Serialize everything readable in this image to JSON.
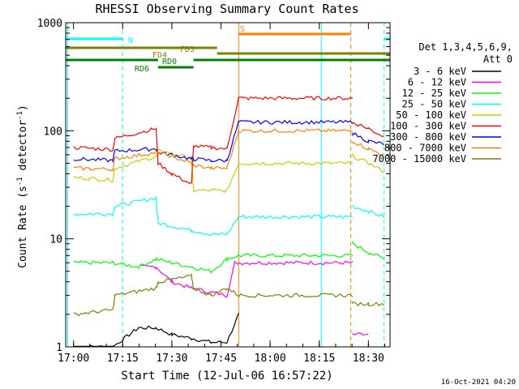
{
  "chart_data": {
    "type": "line",
    "title": "RHESSI Observing Summary Count Rates",
    "xlabel": "Start Time (12-Jul-06 16:57:22)",
    "ylabel_main": "Count Rate (s",
    "ylabel_sup1": "-1",
    "ylabel_mid": " detector",
    "ylabel_sup2": "-1",
    "ylabel_end": ")",
    "ylog": true,
    "ylim": [
      1,
      1000
    ],
    "xlim_minutes": [
      16.96,
      18.61
    ],
    "x_ticks": [
      {
        "t": 17.0,
        "label": "17:00"
      },
      {
        "t": 17.25,
        "label": "17:15"
      },
      {
        "t": 17.5,
        "label": "17:30"
      },
      {
        "t": 17.75,
        "label": "17:45"
      },
      {
        "t": 18.0,
        "label": "18:00"
      },
      {
        "t": 18.25,
        "label": "18:15"
      },
      {
        "t": 18.5,
        "label": "18:30"
      }
    ],
    "y_ticks": [
      {
        "v": 1,
        "label": "1"
      },
      {
        "v": 10,
        "label": "10"
      },
      {
        "v": 100,
        "label": "100"
      },
      {
        "v": 1000,
        "label": "1000"
      }
    ],
    "legend_header": [
      "Det 1,3,4,5,6,9,",
      "Att 0"
    ],
    "series": [
      {
        "name": "3 - 6 keV",
        "color": "#000000",
        "values": [
          [
            17.0,
            1
          ],
          [
            17.2,
            1
          ],
          [
            17.33,
            1.5
          ],
          [
            17.42,
            1.5
          ],
          [
            17.5,
            1.3
          ],
          [
            17.6,
            1.2
          ],
          [
            17.7,
            1.1
          ],
          [
            17.78,
            1.1
          ],
          [
            17.84,
            2
          ]
        ]
      },
      {
        "name": "6 - 12 keV",
        "color": "#ff00ff",
        "values": [
          [
            17.34,
            5.5
          ],
          [
            17.42,
            5.5
          ],
          [
            17.5,
            4
          ],
          [
            17.6,
            3.5
          ],
          [
            17.7,
            3.2
          ],
          [
            17.78,
            3
          ],
          [
            17.82,
            6
          ],
          [
            18.42,
            1.3
          ],
          [
            18.5,
            1.3
          ]
        ]
      },
      {
        "name": "12 - 25 keV",
        "color": "#00ff00",
        "values": [
          [
            17.0,
            6
          ],
          [
            17.2,
            6
          ],
          [
            17.33,
            5.5
          ],
          [
            17.42,
            6.5
          ],
          [
            17.5,
            6
          ],
          [
            17.6,
            5.5
          ],
          [
            17.7,
            5
          ],
          [
            17.78,
            6.5
          ],
          [
            17.84,
            7
          ],
          [
            18.42,
            9
          ],
          [
            18.5,
            7.5
          ],
          [
            18.58,
            6.5
          ]
        ]
      },
      {
        "name": "25 - 50 keV",
        "color": "#00ffff",
        "values": [
          [
            17.0,
            17
          ],
          [
            17.2,
            17
          ],
          [
            17.21,
            20
          ],
          [
            17.42,
            24
          ],
          [
            17.43,
            14
          ],
          [
            17.6,
            12
          ],
          [
            17.7,
            11
          ],
          [
            17.78,
            11
          ],
          [
            17.84,
            16
          ],
          [
            18.42,
            20
          ],
          [
            18.5,
            18
          ],
          [
            18.58,
            16
          ]
        ]
      },
      {
        "name": "50 - 100 keV",
        "color": "#cccc00",
        "values": [
          [
            17.0,
            37
          ],
          [
            17.2,
            35
          ],
          [
            17.21,
            45
          ],
          [
            17.42,
            58
          ],
          [
            17.43,
            65
          ],
          [
            17.5,
            62
          ],
          [
            17.6,
            55
          ],
          [
            17.61,
            28
          ],
          [
            17.7,
            28
          ],
          [
            17.78,
            28
          ],
          [
            17.84,
            50
          ],
          [
            18.42,
            58
          ],
          [
            18.5,
            50
          ],
          [
            18.58,
            42
          ]
        ]
      },
      {
        "name": "100 - 300 keV",
        "color": "#ff0000",
        "values": [
          [
            17.0,
            70
          ],
          [
            17.2,
            67
          ],
          [
            17.21,
            85
          ],
          [
            17.42,
            105
          ],
          [
            17.43,
            50
          ],
          [
            17.5,
            40
          ],
          [
            17.6,
            32
          ],
          [
            17.61,
            72
          ],
          [
            17.7,
            70
          ],
          [
            17.78,
            68
          ],
          [
            17.84,
            200
          ],
          [
            18.42,
            120
          ],
          [
            18.5,
            105
          ],
          [
            18.58,
            88
          ]
        ]
      },
      {
        "name": "300 - 800 keV",
        "color": "#0000ff",
        "values": [
          [
            17.0,
            55
          ],
          [
            17.2,
            53
          ],
          [
            17.21,
            65
          ],
          [
            17.42,
            68
          ],
          [
            17.43,
            63
          ],
          [
            17.5,
            60
          ],
          [
            17.6,
            55
          ],
          [
            17.61,
            55
          ],
          [
            17.7,
            53
          ],
          [
            17.78,
            53
          ],
          [
            17.84,
            120
          ],
          [
            18.42,
            95
          ],
          [
            18.5,
            80
          ],
          [
            18.58,
            75
          ]
        ]
      },
      {
        "name": "800 - 7000 keV",
        "color": "#ff8000",
        "values": [
          [
            17.0,
            45
          ],
          [
            17.2,
            44
          ],
          [
            17.21,
            55
          ],
          [
            17.42,
            63
          ],
          [
            17.43,
            63
          ],
          [
            17.5,
            58
          ],
          [
            17.6,
            50
          ],
          [
            17.61,
            48
          ],
          [
            17.7,
            45
          ],
          [
            17.78,
            45
          ],
          [
            17.84,
            100
          ],
          [
            18.42,
            80
          ],
          [
            18.5,
            68
          ],
          [
            18.58,
            60
          ]
        ]
      },
      {
        "name": "7000 - 15000 keV",
        "color": "#808000",
        "values": [
          [
            17.0,
            2
          ],
          [
            17.2,
            2.2
          ],
          [
            17.21,
            3
          ],
          [
            17.42,
            3.5
          ],
          [
            17.43,
            4
          ],
          [
            17.5,
            4.2
          ],
          [
            17.6,
            4.5
          ],
          [
            17.61,
            3.5
          ],
          [
            17.7,
            3
          ],
          [
            17.78,
            3.5
          ],
          [
            17.84,
            3
          ],
          [
            18.42,
            2.5
          ],
          [
            18.5,
            2.5
          ],
          [
            18.58,
            2.5
          ]
        ]
      }
    ],
    "flags": [
      {
        "label": "N",
        "color": "#00ffff",
        "segments": [
          [
            16.96,
            17.25
          ],
          [
            18.58,
            18.61
          ]
        ]
      },
      {
        "label": "S",
        "color": "#ff8000",
        "segments": [
          [
            17.84,
            18.41
          ]
        ]
      },
      {
        "label": "FD3",
        "color": "#808000",
        "segments": [
          [
            16.96,
            17.73
          ]
        ]
      },
      {
        "label": "FD4",
        "color": "#808000",
        "segments": [
          [
            17.73,
            18.61
          ]
        ]
      },
      {
        "label": "RD0",
        "color": "#008000",
        "segments": [
          [
            16.96,
            17.43
          ],
          [
            17.61,
            18.61
          ]
        ]
      },
      {
        "label": "RD6",
        "color": "#008000",
        "segments": [
          [
            17.43,
            17.61
          ]
        ]
      }
    ],
    "vlines": [
      {
        "t": 16.97,
        "color": "#00ffff",
        "dash": false
      },
      {
        "t": 17.25,
        "color": "#00ffff",
        "dash": true
      },
      {
        "t": 17.84,
        "color": "#ff8000",
        "dash": false
      },
      {
        "t": 18.26,
        "color": "#00ffff",
        "dash": false
      },
      {
        "t": 18.41,
        "color": "#ff8000",
        "dash": true
      },
      {
        "t": 18.58,
        "color": "#00ffff",
        "dash": true
      }
    ],
    "timestamp": "16-Oct-2021 04:20"
  }
}
